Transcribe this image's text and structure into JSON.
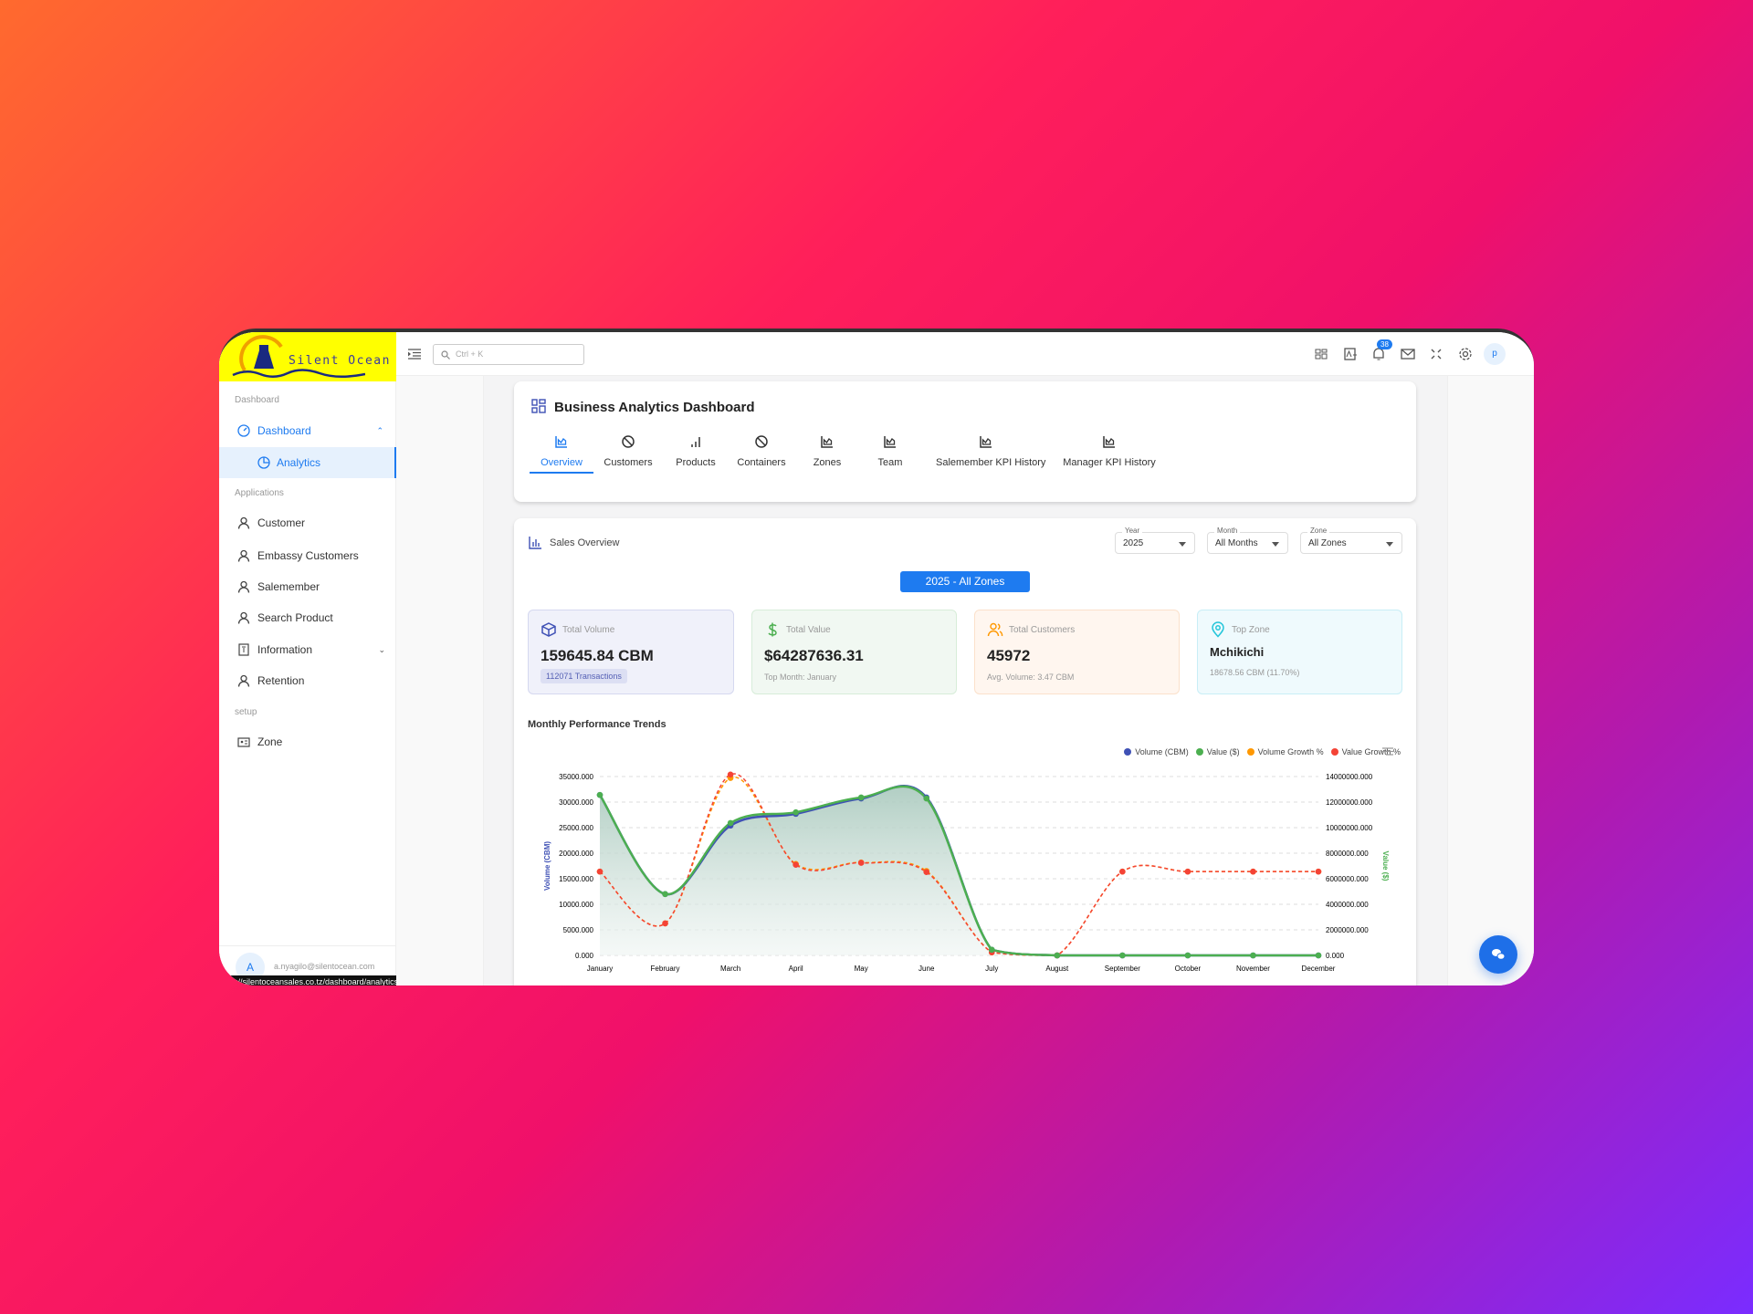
{
  "brand": {
    "name": "Silent Ocean",
    "color": "#ffff00"
  },
  "header": {
    "search_placeholder": "Ctrl + K",
    "notifications_count": "38",
    "avatar_letter": "p",
    "icons": [
      "menu-toggle-icon",
      "search-icon",
      "apps-icon",
      "translate-icon",
      "bell-icon",
      "mail-icon",
      "fullscreen-icon",
      "gear-icon"
    ]
  },
  "sidebar": {
    "sections": [
      {
        "label": "Dashboard"
      },
      {
        "label": "Applications"
      },
      {
        "label": "setup"
      }
    ],
    "dashboard": {
      "label": "Dashboard",
      "icon": "gauge-icon"
    },
    "analytics": {
      "label": "Analytics",
      "icon": "pie-icon"
    },
    "items": [
      {
        "label": "Customer",
        "icon": "user-icon"
      },
      {
        "label": "Embassy Customers",
        "icon": "user-icon"
      },
      {
        "label": "Salemember",
        "icon": "user-icon"
      },
      {
        "label": "Search Product",
        "icon": "user-icon"
      },
      {
        "label": "Information",
        "icon": "info-file-icon"
      },
      {
        "label": "Retention",
        "icon": "user-icon"
      },
      {
        "label": "Zone",
        "icon": "id-card-icon"
      }
    ],
    "user_email": "a.nyagilo@silentocean.com",
    "user_initial": "A",
    "status_url": "tps://silentoceansales.co.tz/dashboard/analytics"
  },
  "dashboard": {
    "title": "Business Analytics Dashboard",
    "tabs": [
      {
        "label": "Overview",
        "active": true
      },
      {
        "label": "Customers"
      },
      {
        "label": "Products"
      },
      {
        "label": "Containers"
      },
      {
        "label": "Zones"
      },
      {
        "label": "Team"
      },
      {
        "label": "Salemember KPI History"
      },
      {
        "label": "Manager KPI History"
      }
    ],
    "accent": "#1e7bf0"
  },
  "sales": {
    "title": "Sales Overview",
    "filters": {
      "year": {
        "label": "Year",
        "value": "2025"
      },
      "month": {
        "label": "Month",
        "value": "All Months"
      },
      "zone": {
        "label": "Zone",
        "value": "All Zones"
      }
    },
    "badge": "2025 - All Zones",
    "kpis": [
      {
        "label": "Total Volume",
        "value": "159645.84 CBM",
        "sub": "112071 Transactions",
        "color": "#3f51b5"
      },
      {
        "label": "Total Value",
        "value": "$64287636.31",
        "sub": "Top Month: January",
        "color": "#4caf50"
      },
      {
        "label": "Total Customers",
        "value": "45972",
        "sub": "Avg. Volume: 3.47 CBM",
        "color": "#ff9800"
      },
      {
        "label": "Top Zone",
        "value": "Mchikichi",
        "sub": "18678.56 CBM (11.70%)",
        "color": "#26c6da"
      }
    ],
    "chart_title": "Monthly Performance Trends"
  },
  "chart_data": {
    "type": "line",
    "categories": [
      "January",
      "February",
      "March",
      "April",
      "May",
      "June",
      "July",
      "August",
      "September",
      "October",
      "November",
      "December"
    ],
    "series": [
      {
        "name": "Volume (CBM)",
        "color": "#3f51b5",
        "axis": "left",
        "values": [
          31400,
          12000,
          25400,
          27700,
          30700,
          30900,
          1100,
          0,
          0,
          0,
          0,
          0
        ]
      },
      {
        "name": "Value ($)",
        "color": "#4caf50",
        "axis": "right",
        "values": [
          12560000,
          4800000,
          10360000,
          11200000,
          12360000,
          12280000,
          440000,
          0,
          0,
          0,
          0,
          0
        ]
      },
      {
        "name": "Volume Growth %",
        "color": "#ff9800",
        "axis": "hidden",
        "dashed": true,
        "values": [
          0,
          -61.8,
          111.7,
          9.1,
          10.8,
          0.7,
          -96.4,
          -100,
          0,
          0,
          0,
          0
        ]
      },
      {
        "name": "Value Growth %",
        "color": "#f44336",
        "axis": "hidden",
        "dashed": true,
        "values": [
          0,
          -61.8,
          115.8,
          8.1,
          10.4,
          -0.6,
          -96.4,
          -100,
          0,
          0,
          0,
          0
        ]
      }
    ],
    "ylabel": "Volume (CBM)",
    "ylim": [
      0,
      35000
    ],
    "yticks": [
      "0.000",
      "5000.000",
      "10000.000",
      "15000.000",
      "20000.000",
      "25000.000",
      "30000.000",
      "35000.000"
    ],
    "y2label": "Value ($)",
    "y2lim": [
      0,
      14000000
    ],
    "y2ticks": [
      "0.000",
      "2000000.000",
      "4000000.000",
      "6000000.000",
      "8000000.000",
      "10000000.000",
      "12000000.000",
      "14000000.000"
    ],
    "y3lim": [
      -100,
      113.4
    ],
    "grid": true,
    "legend": "top-right"
  }
}
